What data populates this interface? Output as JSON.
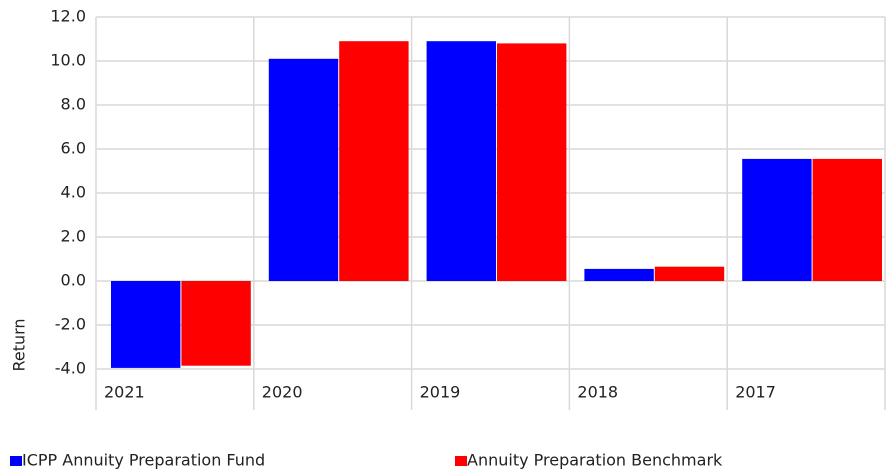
{
  "chart_data": {
    "type": "bar",
    "y_label": "Return",
    "categories": [
      "2021",
      "2020",
      "2019",
      "2018",
      "2017"
    ],
    "series": [
      {
        "name": "ICPP Annuity Preparation Fund",
        "color": "#0000ff",
        "values": [
          -3.95,
          10.1,
          10.9,
          0.55,
          5.55
        ]
      },
      {
        "name": "Annuity Preparation Benchmark",
        "color": "#ff0000",
        "values": [
          -3.85,
          10.9,
          10.8,
          0.65,
          5.55
        ]
      }
    ],
    "ylim": [
      -4,
      12
    ],
    "yticks": [
      {
        "value": -4,
        "label": "-4.0"
      },
      {
        "value": -2,
        "label": "-2.0"
      },
      {
        "value": 0,
        "label": "0.0"
      },
      {
        "value": 2,
        "label": "2.0"
      },
      {
        "value": 4,
        "label": "4.0"
      },
      {
        "value": 6,
        "label": "6.0"
      },
      {
        "value": 8,
        "label": "8.0"
      },
      {
        "value": 10,
        "label": "10.0"
      },
      {
        "value": 12,
        "label": "12.0"
      }
    ],
    "grid": true
  }
}
